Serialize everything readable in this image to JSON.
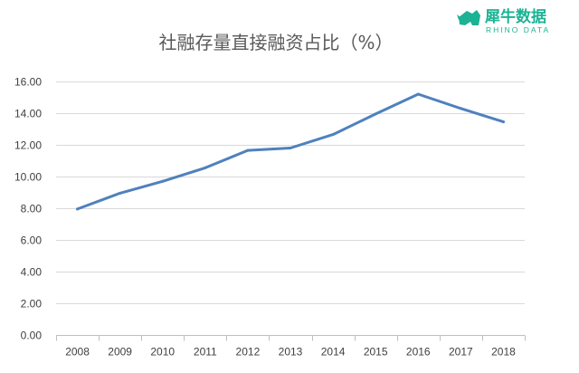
{
  "brand": {
    "name_cn": "犀牛数据",
    "name_en": "RHINO DATA",
    "color": "#1bb394",
    "icon": "rhino-icon"
  },
  "chart_data": {
    "type": "line",
    "title": "社融存量直接融资占比（%）",
    "xlabel": "",
    "ylabel": "",
    "categories": [
      "2008",
      "2009",
      "2010",
      "2011",
      "2012",
      "2013",
      "2014",
      "2015",
      "2016",
      "2017",
      "2018"
    ],
    "y_ticks": [
      "0.00",
      "2.00",
      "4.00",
      "6.00",
      "8.00",
      "10.00",
      "12.00",
      "14.00",
      "16.00"
    ],
    "ylim": [
      0,
      16
    ],
    "grid": true,
    "legend": "none",
    "series": [
      {
        "color": "#4f81bd",
        "values": [
          7.95,
          8.95,
          9.7,
          10.55,
          11.65,
          11.8,
          12.65,
          13.95,
          15.2,
          14.3,
          13.45
        ]
      }
    ]
  }
}
